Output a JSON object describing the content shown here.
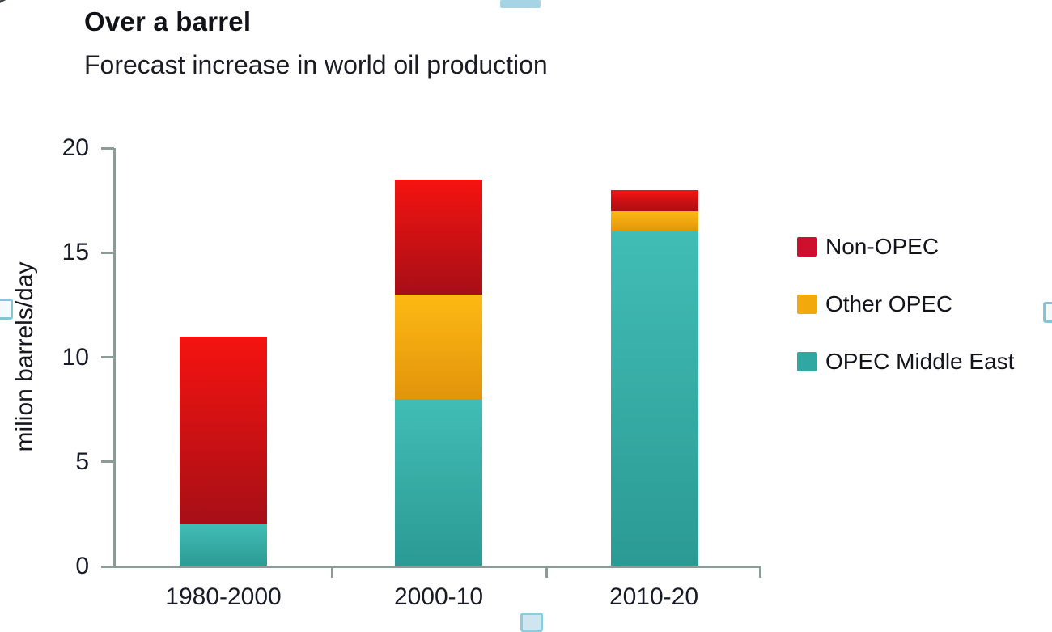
{
  "chart_data": {
    "type": "bar",
    "stacked": true,
    "title": "Over a barrel",
    "subtitle": "Forecast increase in world oil production",
    "xlabel": "",
    "ylabel": "milion barrels/day",
    "ylim": [
      0,
      20
    ],
    "yticks": [
      0,
      5,
      10,
      15,
      20
    ],
    "grid": false,
    "legend_position": "right",
    "legend_order": [
      "Non-OPEC",
      "Other OPEC",
      "OPEC Middle East"
    ],
    "categories": [
      "1980-2000",
      "2000-10",
      "2010-20"
    ],
    "series": [
      {
        "name": "OPEC Middle East",
        "color": "#2fa8a2",
        "gradient_top": "#41bdb5",
        "gradient_bottom": "#2b9a94",
        "values": [
          2,
          8,
          16
        ]
      },
      {
        "name": "Other OPEC",
        "color": "#f2a90c",
        "gradient_top": "#fdb913",
        "gradient_bottom": "#e2940b",
        "values": [
          0,
          5,
          1
        ]
      },
      {
        "name": "Non-OPEC",
        "color": "#ce0f2d",
        "gradient_top": "#f51310",
        "gradient_bottom": "#a60f16",
        "values": [
          9,
          5.5,
          1
        ]
      }
    ],
    "totals": [
      11,
      18.5,
      18
    ]
  },
  "ui": {
    "selection_handles": [
      "top",
      "left",
      "right",
      "bottom"
    ]
  }
}
